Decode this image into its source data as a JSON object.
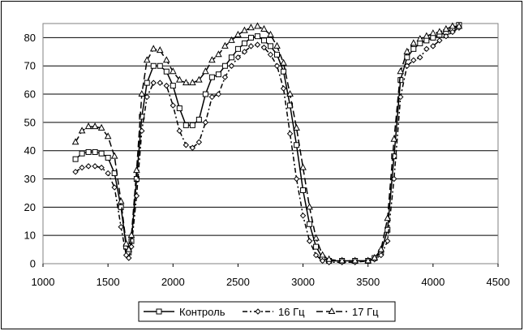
{
  "chart_data": {
    "type": "line",
    "grid": "horizontal",
    "xlim": [
      1000,
      4500
    ],
    "ylim": [
      0,
      85
    ],
    "x_ticks": [
      "1000",
      "1500",
      "2000",
      "2500",
      "3000",
      "3500",
      "4000",
      "4500"
    ],
    "y_ticks": [
      "0",
      "10",
      "20",
      "30",
      "40",
      "50",
      "60",
      "70",
      "80"
    ],
    "legend_position": "bottom",
    "series": [
      {
        "name": "Контроль",
        "marker": "square",
        "dash": "",
        "points": [
          [
            1250,
            37
          ],
          [
            1300,
            39
          ],
          [
            1350,
            39.5
          ],
          [
            1400,
            39.5
          ],
          [
            1450,
            39
          ],
          [
            1500,
            37.5
          ],
          [
            1550,
            32
          ],
          [
            1600,
            20
          ],
          [
            1640,
            6
          ],
          [
            1660,
            4
          ],
          [
            1680,
            8
          ],
          [
            1720,
            30
          ],
          [
            1760,
            52
          ],
          [
            1800,
            64
          ],
          [
            1850,
            70
          ],
          [
            1900,
            70
          ],
          [
            1950,
            68
          ],
          [
            2000,
            63
          ],
          [
            2050,
            55
          ],
          [
            2100,
            49
          ],
          [
            2150,
            49
          ],
          [
            2200,
            51
          ],
          [
            2250,
            60
          ],
          [
            2300,
            66
          ],
          [
            2350,
            67
          ],
          [
            2400,
            70
          ],
          [
            2450,
            73
          ],
          [
            2500,
            76
          ],
          [
            2550,
            78
          ],
          [
            2600,
            80
          ],
          [
            2650,
            80.5
          ],
          [
            2700,
            79
          ],
          [
            2750,
            77
          ],
          [
            2800,
            74
          ],
          [
            2850,
            68
          ],
          [
            2900,
            56
          ],
          [
            2950,
            42
          ],
          [
            3000,
            26
          ],
          [
            3050,
            14
          ],
          [
            3100,
            6
          ],
          [
            3150,
            2
          ],
          [
            3200,
            1
          ],
          [
            3300,
            1
          ],
          [
            3400,
            1
          ],
          [
            3500,
            1
          ],
          [
            3550,
            2
          ],
          [
            3600,
            4
          ],
          [
            3650,
            12
          ],
          [
            3700,
            38
          ],
          [
            3750,
            65
          ],
          [
            3800,
            73
          ],
          [
            3850,
            76
          ],
          [
            3900,
            78
          ],
          [
            3950,
            79
          ],
          [
            4000,
            80
          ],
          [
            4050,
            81
          ],
          [
            4100,
            82
          ],
          [
            4150,
            83
          ],
          [
            4200,
            84.5
          ]
        ]
      },
      {
        "name": "16 Гц",
        "marker": "diamond",
        "dash": "6,3,2,3",
        "points": [
          [
            1250,
            32.5
          ],
          [
            1300,
            34
          ],
          [
            1350,
            34.5
          ],
          [
            1400,
            34.5
          ],
          [
            1450,
            34
          ],
          [
            1500,
            32
          ],
          [
            1550,
            27
          ],
          [
            1600,
            13
          ],
          [
            1640,
            3
          ],
          [
            1660,
            2
          ],
          [
            1680,
            6
          ],
          [
            1720,
            24
          ],
          [
            1760,
            47
          ],
          [
            1800,
            59
          ],
          [
            1850,
            64
          ],
          [
            1900,
            64
          ],
          [
            1950,
            63
          ],
          [
            2000,
            56
          ],
          [
            2050,
            47
          ],
          [
            2100,
            42
          ],
          [
            2150,
            41
          ],
          [
            2200,
            43
          ],
          [
            2250,
            50
          ],
          [
            2300,
            59
          ],
          [
            2350,
            60
          ],
          [
            2400,
            66
          ],
          [
            2450,
            70
          ],
          [
            2500,
            73
          ],
          [
            2550,
            75
          ],
          [
            2600,
            77
          ],
          [
            2650,
            77.5
          ],
          [
            2700,
            76.5
          ],
          [
            2750,
            74
          ],
          [
            2800,
            70
          ],
          [
            2850,
            62
          ],
          [
            2900,
            46
          ],
          [
            2950,
            30
          ],
          [
            3000,
            17
          ],
          [
            3050,
            8
          ],
          [
            3100,
            3
          ],
          [
            3150,
            1
          ],
          [
            3200,
            0.5
          ],
          [
            3300,
            0.5
          ],
          [
            3400,
            0.5
          ],
          [
            3500,
            1
          ],
          [
            3550,
            1.5
          ],
          [
            3600,
            3
          ],
          [
            3650,
            8
          ],
          [
            3700,
            30
          ],
          [
            3750,
            59
          ],
          [
            3800,
            70
          ],
          [
            3850,
            72
          ],
          [
            3900,
            73
          ],
          [
            3950,
            76
          ],
          [
            4000,
            77
          ],
          [
            4050,
            79
          ],
          [
            4100,
            80.5
          ],
          [
            4150,
            82
          ],
          [
            4200,
            83.5
          ]
        ]
      },
      {
        "name": "17 Гц",
        "marker": "triangle",
        "dash": "8,4",
        "points": [
          [
            1250,
            43
          ],
          [
            1300,
            47
          ],
          [
            1350,
            48.5
          ],
          [
            1400,
            48.5
          ],
          [
            1450,
            48
          ],
          [
            1500,
            45
          ],
          [
            1550,
            38
          ],
          [
            1600,
            22
          ],
          [
            1640,
            7
          ],
          [
            1660,
            5
          ],
          [
            1680,
            10
          ],
          [
            1720,
            33
          ],
          [
            1760,
            60
          ],
          [
            1800,
            72
          ],
          [
            1850,
            76
          ],
          [
            1900,
            75.5
          ],
          [
            1950,
            72
          ],
          [
            2000,
            68
          ],
          [
            2050,
            65
          ],
          [
            2100,
            64
          ],
          [
            2150,
            64
          ],
          [
            2200,
            65
          ],
          [
            2250,
            68
          ],
          [
            2300,
            72
          ],
          [
            2350,
            74
          ],
          [
            2400,
            77
          ],
          [
            2450,
            79
          ],
          [
            2500,
            81
          ],
          [
            2550,
            82.5
          ],
          [
            2600,
            83.5
          ],
          [
            2650,
            84
          ],
          [
            2700,
            83
          ],
          [
            2750,
            81
          ],
          [
            2800,
            77
          ],
          [
            2850,
            71
          ],
          [
            2900,
            60
          ],
          [
            2950,
            48
          ],
          [
            3000,
            34
          ],
          [
            3050,
            20
          ],
          [
            3100,
            9
          ],
          [
            3150,
            3
          ],
          [
            3200,
            1.5
          ],
          [
            3300,
            1
          ],
          [
            3400,
            1
          ],
          [
            3500,
            1
          ],
          [
            3550,
            2
          ],
          [
            3600,
            5
          ],
          [
            3650,
            16
          ],
          [
            3700,
            44
          ],
          [
            3750,
            68
          ],
          [
            3800,
            75
          ],
          [
            3850,
            78
          ],
          [
            3900,
            79.5
          ],
          [
            3950,
            80.5
          ],
          [
            4000,
            81.5
          ],
          [
            4050,
            82
          ],
          [
            4100,
            83
          ],
          [
            4150,
            84
          ],
          [
            4200,
            84
          ]
        ]
      }
    ]
  }
}
